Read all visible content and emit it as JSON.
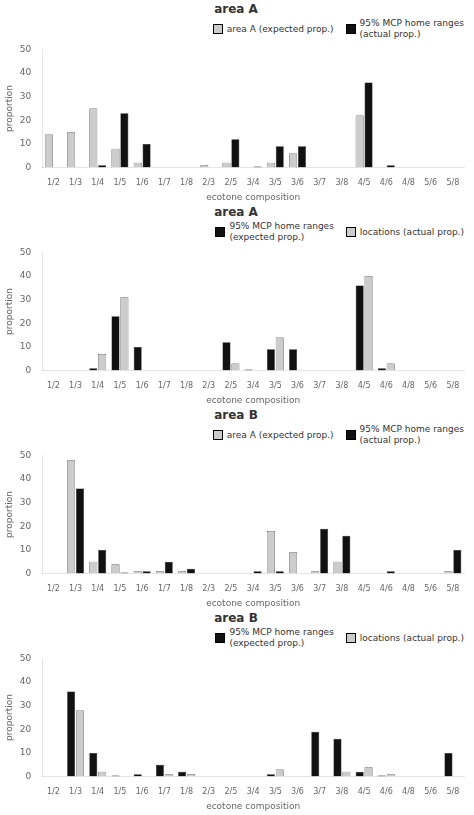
{
  "chart_data": [
    {
      "type": "bar",
      "title": "area A",
      "categories": [
        "1/2",
        "1/3",
        "1/4",
        "1/5",
        "1/6",
        "1/7",
        "1/8",
        "2/3",
        "2/5",
        "3/4",
        "3/5",
        "3/6",
        "3/7",
        "3/8",
        "4/5",
        "4/6",
        "4/8",
        "5/6",
        "5/8"
      ],
      "series": [
        {
          "name": "area A (expected prop.)",
          "color": "#cccccc",
          "values": [
            14,
            15,
            25,
            8,
            2,
            0,
            0,
            1,
            2,
            0,
            2,
            6,
            0,
            0,
            22,
            0,
            0,
            0,
            0
          ]
        },
        {
          "name": "95% MCP home ranges\n(actual prop.)",
          "color": "#111111",
          "values": [
            0,
            0,
            1,
            23,
            10,
            0,
            0,
            0,
            12,
            0.5,
            9,
            9,
            0,
            0,
            36,
            1,
            0,
            0,
            0
          ]
        }
      ],
      "xlabel": "ecotone composition",
      "ylabel": "proportion",
      "ylim": [
        0,
        50
      ],
      "yticks": [
        0,
        10,
        20,
        30,
        40,
        50
      ],
      "grid": false,
      "legend": "upper right"
    },
    {
      "type": "bar",
      "title": "area A",
      "categories": [
        "1/2",
        "1/3",
        "1/4",
        "1/5",
        "1/6",
        "1/7",
        "1/8",
        "2/3",
        "2/5",
        "3/4",
        "3/5",
        "3/6",
        "3/7",
        "3/8",
        "4/5",
        "4/6",
        "4/8",
        "5/6",
        "5/8"
      ],
      "series": [
        {
          "name": "95% MCP home ranges\n(expected prop.)",
          "color": "#111111",
          "values": [
            0,
            0,
            1,
            23,
            10,
            0,
            0,
            0,
            12,
            0.5,
            9,
            9,
            0,
            0,
            36,
            1,
            0,
            0,
            0
          ]
        },
        {
          "name": "locations (actual prop.)",
          "color": "#cccccc",
          "values": [
            0,
            0,
            7,
            31,
            0,
            0,
            0,
            0,
            3,
            0,
            14,
            0,
            0,
            0,
            40,
            3,
            0,
            0,
            0
          ]
        }
      ],
      "xlabel": "ecotone composition",
      "ylabel": "proportion",
      "ylim": [
        0,
        50
      ],
      "yticks": [
        0,
        10,
        20,
        30,
        40,
        50
      ],
      "grid": false,
      "legend": "upper right"
    },
    {
      "type": "bar",
      "title": "area B",
      "categories": [
        "1/2",
        "1/3",
        "1/4",
        "1/5",
        "1/6",
        "1/7",
        "1/8",
        "2/3",
        "2/5",
        "3/4",
        "3/5",
        "3/6",
        "3/7",
        "3/8",
        "4/5",
        "4/6",
        "4/8",
        "5/6",
        "5/8"
      ],
      "series": [
        {
          "name": "area A (expected prop.)",
          "color": "#cccccc",
          "values": [
            0,
            48,
            5,
            4,
            1,
            1,
            1,
            0,
            0,
            0,
            18,
            9,
            1,
            5,
            0,
            0,
            0,
            0,
            1
          ]
        },
        {
          "name": "95% MCP home ranges\n(actual prop.)",
          "color": "#111111",
          "values": [
            0,
            36,
            10,
            0.5,
            1,
            5,
            2,
            0,
            0,
            1,
            1,
            0,
            19,
            16,
            0,
            1,
            0,
            0,
            10
          ]
        }
      ],
      "xlabel": "ecotone composition",
      "ylabel": "proportion",
      "ylim": [
        0,
        50
      ],
      "yticks": [
        0,
        10,
        20,
        30,
        40,
        50
      ],
      "grid": false,
      "legend": "upper right"
    },
    {
      "type": "bar",
      "title": "area B",
      "categories": [
        "1/2",
        "1/3",
        "1/4",
        "1/5",
        "1/6",
        "1/7",
        "1/8",
        "2/3",
        "2/5",
        "3/4",
        "3/5",
        "3/6",
        "3/7",
        "3/8",
        "4/5",
        "4/6",
        "4/8",
        "5/6",
        "5/8"
      ],
      "series": [
        {
          "name": "95% MCP home ranges\n(expected prop.)",
          "color": "#111111",
          "values": [
            0,
            36,
            10,
            0.5,
            1,
            5,
            2,
            0,
            0,
            0,
            1,
            0,
            19,
            16,
            2,
            0.5,
            0,
            0,
            10
          ]
        },
        {
          "name": "locations (actual prop.)",
          "color": "#cccccc",
          "values": [
            0,
            28,
            2,
            0,
            0,
            1,
            1,
            0,
            0,
            0,
            3,
            0,
            0,
            2,
            4,
            1,
            0,
            0,
            0
          ]
        }
      ],
      "xlabel": "ecotone composition",
      "ylabel": "proportion",
      "ylim": [
        0,
        50
      ],
      "yticks": [
        0,
        10,
        20,
        30,
        40,
        50
      ],
      "grid": false,
      "legend": "upper right"
    }
  ]
}
